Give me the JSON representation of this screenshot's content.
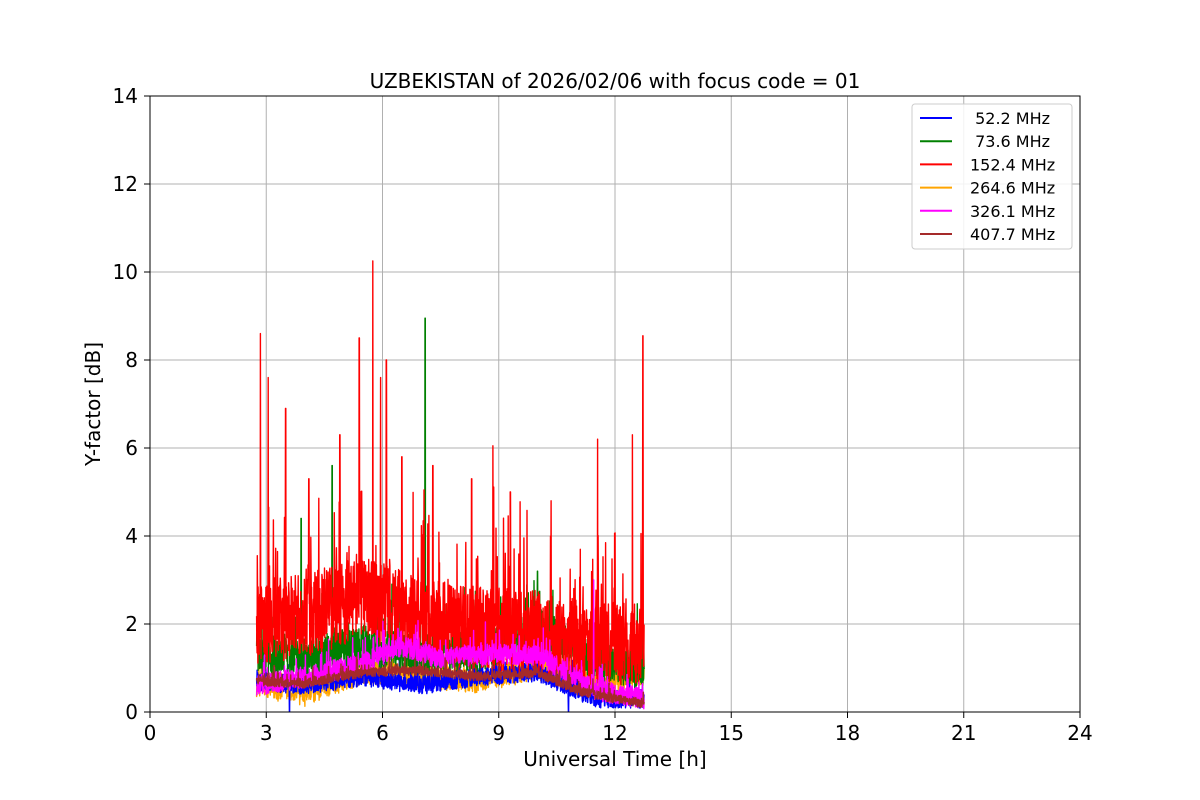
{
  "chart_data": {
    "type": "line",
    "title": "UZBEKISTAN of 2026/02/06 with focus code = 01",
    "xlabel": "Universal Time [h]",
    "ylabel": "Y-factor [dB]",
    "xlim": [
      0,
      24
    ],
    "ylim": [
      0,
      14
    ],
    "xticks": [
      0,
      3,
      6,
      9,
      12,
      15,
      18,
      21,
      24
    ],
    "yticks": [
      0,
      2,
      4,
      6,
      8,
      10,
      12,
      14
    ],
    "grid": true,
    "legend_position": "top-right",
    "time_range": [
      2.75,
      12.75
    ],
    "series": [
      {
        "name": " 52.2 MHz",
        "color": "#0000ff",
        "base": [
          [
            2.75,
            0.7
          ],
          [
            4,
            0.6
          ],
          [
            5.5,
            0.8
          ],
          [
            7,
            0.6
          ],
          [
            8.5,
            0.8
          ],
          [
            10,
            0.9
          ],
          [
            11.5,
            0.3
          ],
          [
            12.75,
            0.3
          ]
        ],
        "noise": 0.35,
        "spikes": [
          [
            3.6,
            0.0
          ],
          [
            10.8,
            0.0
          ]
        ]
      },
      {
        "name": " 73.6 MHz",
        "color": "#008000",
        "base": [
          [
            2.75,
            1.3
          ],
          [
            4,
            1.2
          ],
          [
            5.5,
            1.5
          ],
          [
            7,
            1.3
          ],
          [
            8.5,
            1.4
          ],
          [
            10,
            1.9
          ],
          [
            11.5,
            1.2
          ],
          [
            12.75,
            1.0
          ]
        ],
        "noise": 0.8,
        "spikes": [
          [
            3.9,
            4.4
          ],
          [
            4.7,
            5.6
          ],
          [
            7.1,
            8.95
          ],
          [
            10.0,
            3.2
          ]
        ]
      },
      {
        "name": "152.4 MHz",
        "color": "#ff0000",
        "base": [
          [
            2.75,
            2.0
          ],
          [
            4,
            2.2
          ],
          [
            5.5,
            2.6
          ],
          [
            7,
            2.1
          ],
          [
            8.5,
            1.9
          ],
          [
            10,
            1.8
          ],
          [
            11.5,
            1.5
          ],
          [
            12.75,
            1.6
          ]
        ],
        "noise": 1.6,
        "spikes": [
          [
            2.85,
            8.6
          ],
          [
            3.05,
            7.6
          ],
          [
            3.5,
            6.9
          ],
          [
            4.1,
            5.3
          ],
          [
            4.9,
            6.3
          ],
          [
            5.4,
            8.5
          ],
          [
            5.75,
            10.25
          ],
          [
            5.95,
            7.6
          ],
          [
            6.1,
            8.0
          ],
          [
            6.5,
            5.8
          ],
          [
            7.3,
            5.6
          ],
          [
            8.3,
            5.3
          ],
          [
            8.85,
            6.05
          ],
          [
            9.3,
            5.0
          ],
          [
            10.35,
            4.8
          ],
          [
            11.55,
            6.2
          ],
          [
            12.45,
            6.3
          ],
          [
            12.72,
            8.55
          ]
        ]
      },
      {
        "name": "264.6 MHz",
        "color": "#ffa500",
        "base": [
          [
            2.75,
            0.6
          ],
          [
            4,
            0.4
          ],
          [
            5.5,
            0.9
          ],
          [
            7,
            0.8
          ],
          [
            8.5,
            0.7
          ],
          [
            10,
            1.0
          ],
          [
            11.5,
            0.6
          ],
          [
            12.75,
            0.9
          ]
        ],
        "noise": 0.45,
        "spikes": [
          [
            10.2,
            1.9
          ],
          [
            12.6,
            1.3
          ]
        ]
      },
      {
        "name": "326.1 MHz",
        "color": "#ff00ff",
        "base": [
          [
            2.75,
            0.6
          ],
          [
            4,
            0.8
          ],
          [
            5.5,
            1.1
          ],
          [
            6.5,
            1.5
          ],
          [
            7.5,
            1.2
          ],
          [
            8.5,
            1.3
          ],
          [
            10,
            1.3
          ],
          [
            11.5,
            0.5
          ],
          [
            12.75,
            0.3
          ]
        ],
        "noise": 0.4,
        "spikes": [
          [
            6.4,
            1.9
          ],
          [
            11.45,
            3.0
          ]
        ]
      },
      {
        "name": "407.7 MHz",
        "color": "#a52a2a",
        "base": [
          [
            2.75,
            0.7
          ],
          [
            4,
            0.65
          ],
          [
            5.5,
            0.9
          ],
          [
            7,
            0.95
          ],
          [
            8.5,
            0.8
          ],
          [
            10,
            0.9
          ],
          [
            11,
            0.5
          ],
          [
            12,
            0.3
          ],
          [
            12.75,
            0.2
          ]
        ],
        "noise": 0.18,
        "spikes": []
      }
    ]
  }
}
